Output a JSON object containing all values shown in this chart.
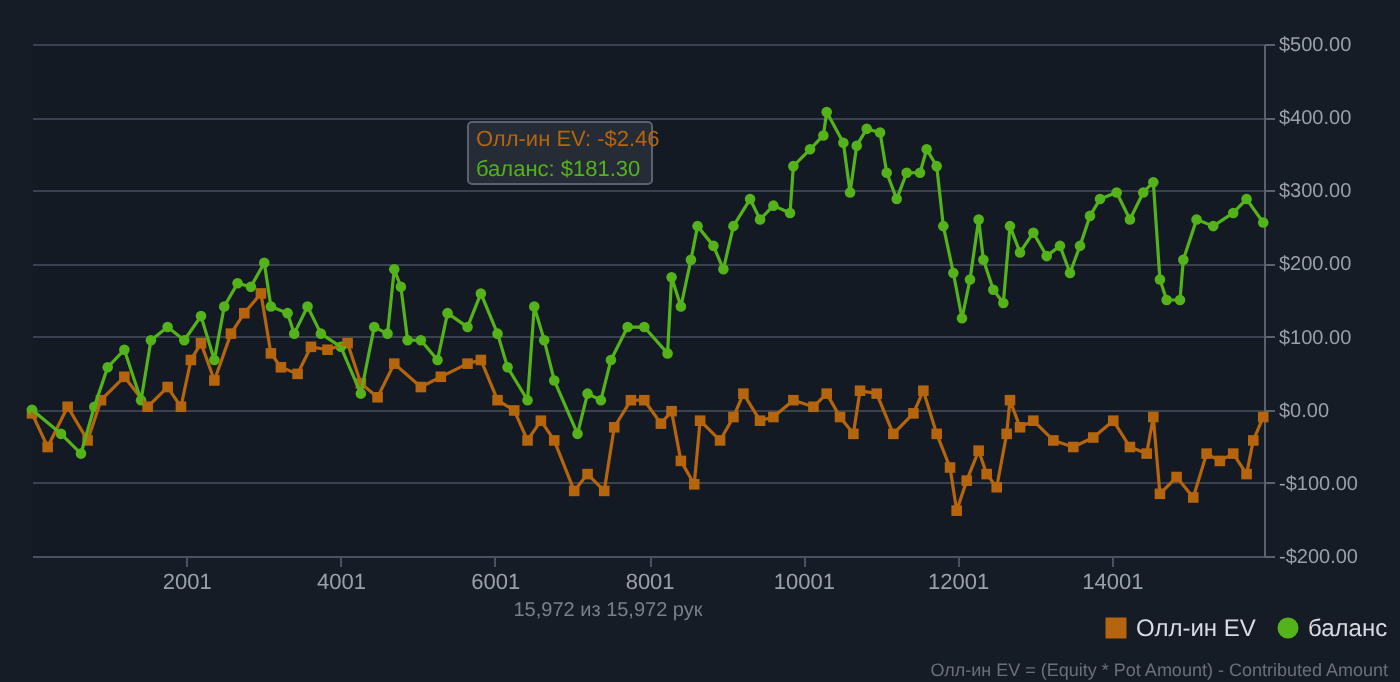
{
  "chart_data": {
    "type": "line",
    "xlim": [
      1,
      15972
    ],
    "xticks": [
      2001,
      4001,
      6001,
      8001,
      10001,
      12001,
      14001
    ],
    "ylim": [
      -200,
      500
    ],
    "yticks": [
      {
        "value": 500,
        "label": "$500.00"
      },
      {
        "value": 400,
        "label": "$400.00"
      },
      {
        "value": 300,
        "label": "$300.00"
      },
      {
        "value": 200,
        "label": "$200.00"
      },
      {
        "value": 100,
        "label": "$100.00"
      },
      {
        "value": 0,
        "label": "$0.00"
      },
      {
        "value": -100,
        "label": "-$100.00"
      },
      {
        "value": -200,
        "label": "-$200.00"
      }
    ],
    "grid": "y",
    "legend": "bottom right",
    "line_style": "solid",
    "series": [
      {
        "name": "Олл-ин EV",
        "color": "#b5650d",
        "marker": "square",
        "x": [
          1,
          204,
          463,
          722,
          895,
          1198,
          1500,
          1759,
          1932,
          2061,
          2192,
          2365,
          2580,
          2753,
          2969,
          3098,
          3228,
          3444,
          3617,
          3832,
          4092,
          4264,
          4481,
          4697,
          5042,
          5301,
          5647,
          5820,
          6036,
          6252,
          6425,
          6598,
          6771,
          7030,
          7203,
          7419,
          7549,
          7765,
          7938,
          8154,
          8292,
          8413,
          8586,
          8662,
          8921,
          9094,
          9223,
          9439,
          9612,
          9871,
          10131,
          10303,
          10476,
          10649,
          10735,
          10951,
          11167,
          11427,
          11556,
          11729,
          11902,
          11988,
          12118,
          12273,
          12377,
          12507,
          12636,
          12679,
          12809,
          12982,
          13241,
          13500,
          13759,
          14018,
          14234,
          14451,
          14537,
          14623,
          14839,
          15055,
          15228,
          15400,
          15573,
          15746,
          15833,
          15962
        ],
        "values": [
          -5,
          -51,
          4,
          -42,
          13,
          45,
          4,
          31,
          4,
          68,
          91,
          40,
          104,
          132,
          159,
          77,
          58,
          49,
          86,
          82,
          91,
          36,
          17,
          63,
          31,
          45,
          63,
          68,
          13,
          -1,
          -42,
          -15,
          -42,
          -111,
          -88,
          -111,
          -24,
          13,
          13,
          -19,
          -2,
          -70,
          -102,
          -15,
          -42,
          -10,
          22,
          -15,
          -10,
          13,
          4,
          22,
          -10,
          -33,
          26,
          22,
          -33,
          -5,
          26,
          -33,
          -79,
          -138,
          -97,
          -56,
          -88,
          -106,
          -33,
          13,
          -24,
          -15,
          -42,
          -51,
          -38,
          -15,
          -51,
          -60,
          -10,
          -115,
          -92,
          -120,
          -60,
          -70,
          -60,
          -88,
          -42,
          -10
        ]
      },
      {
        "name": "баланс",
        "color": "#54b31a",
        "marker": "circle",
        "x": [
          1,
          377,
          636,
          809,
          982,
          1198,
          1415,
          1543,
          1759,
          1975,
          2192,
          2365,
          2493,
          2666,
          2839,
          3012,
          3098,
          3314,
          3400,
          3573,
          3746,
          4005,
          4264,
          4437,
          4610,
          4697,
          4783,
          4870,
          5042,
          5258,
          5388,
          5647,
          5820,
          6036,
          6166,
          6425,
          6512,
          6641,
          6771,
          7073,
          7203,
          7376,
          7506,
          7722,
          7938,
          8240,
          8292,
          8413,
          8543,
          8629,
          8835,
          8964,
          9094,
          9310,
          9439,
          9612,
          9828,
          9871,
          10087,
          10260,
          10303,
          10519,
          10606,
          10692,
          10822,
          10995,
          11081,
          11211,
          11340,
          11513,
          11599,
          11729,
          11815,
          11945,
          12057,
          12161,
          12273,
          12334,
          12463,
          12593,
          12679,
          12809,
          12982,
          13155,
          13327,
          13457,
          13587,
          13716,
          13846,
          14062,
          14234,
          14407,
          14537,
          14623,
          14710,
          14883,
          14926,
          15098,
          15314,
          15573,
          15746,
          15962
        ],
        "values": [
          0,
          -33,
          -60,
          4,
          58,
          82,
          13,
          95,
          113,
          95,
          128,
          68,
          141,
          173,
          168,
          201,
          141,
          132,
          104,
          141,
          104,
          86,
          22,
          113,
          104,
          192,
          168,
          95,
          95,
          68,
          132,
          113,
          159,
          104,
          58,
          13,
          141,
          95,
          40,
          -33,
          22,
          13,
          68,
          113,
          113,
          77,
          181,
          141,
          205,
          251,
          224,
          192,
          251,
          288,
          260,
          279,
          269,
          333,
          356,
          375,
          407,
          365,
          297,
          361,
          384,
          379,
          324,
          288,
          324,
          324,
          356,
          333,
          251,
          187,
          125,
          178,
          260,
          205,
          164,
          146,
          251,
          215,
          242,
          210,
          224,
          187,
          224,
          265,
          288,
          297,
          260,
          297,
          311,
          178,
          150,
          150,
          205,
          260,
          251,
          269,
          288,
          256
        ]
      }
    ],
    "annotations": [
      "Олл-ин EV: -$2.46",
      "баланс: $181.30",
      "15,972 из 15,972 рук",
      "Олл-ин EV = (Equity * Pot Amount) - Contributed Amount"
    ]
  }
}
